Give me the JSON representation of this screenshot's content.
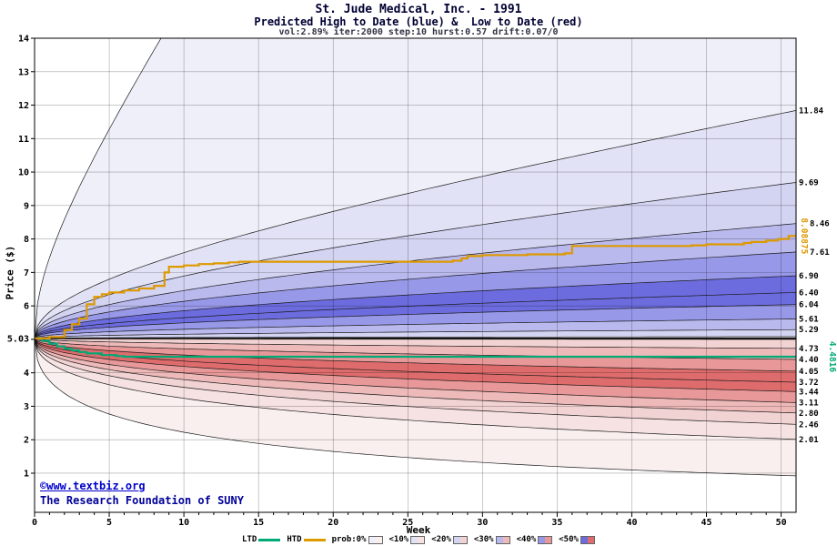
{
  "header": {
    "title": "St. Jude Medical, Inc. - 1991",
    "subtitle": "Predicted High to Date (blue) &  Low to Date (red)",
    "params": "vol:2.89% iter:2000 step:10 hurst:0.57 drift:0.07/0"
  },
  "footer": {
    "copyright": "©www.textbiz.org",
    "institution": "The Research Foundation of SUNY"
  },
  "chart_data": {
    "type": "area",
    "title": "St. Jude Medical, Inc. - 1991",
    "subtitle": "Predicted High to Date (blue) &  Low to Date (red)",
    "xlabel": "Week",
    "ylabel": "Price ($)",
    "x_min": 0,
    "x_max": 51,
    "x_ticks": [
      0,
      5,
      10,
      15,
      20,
      25,
      30,
      35,
      40,
      45,
      50
    ],
    "y_min": -0.17,
    "y_max": 14,
    "y_ticks": [
      1,
      2,
      3,
      4,
      5,
      6,
      7,
      8,
      9,
      10,
      11,
      12,
      13,
      14
    ],
    "grid": true,
    "legend_position": "bottom",
    "start_price": 5.03,
    "start_price_label": "5.03",
    "shape_exponent": 0.45,
    "band_levels": [
      0,
      1,
      2,
      3,
      4,
      5,
      5,
      4,
      3,
      2
    ],
    "blue_palette": [
      "#efeff9",
      "#e2e2f6",
      "#d3d3f2",
      "#b9b9ee",
      "#9898e8",
      "#6c6cdf"
    ],
    "red_palette": [
      "#f9efef",
      "#f6e2e2",
      "#f2d3d3",
      "#eeb9b9",
      "#e89898",
      "#df6c6c"
    ],
    "high_fan": {
      "name": "Predicted High to Date deciles",
      "curve_ends": [
        50,
        11.84,
        9.69,
        8.46,
        7.61,
        6.9,
        6.4,
        6.04,
        5.61,
        5.29,
        5.08
      ],
      "end_labels": [
        {
          "text": "11.84",
          "value": 11.84,
          "dx": 0
        },
        {
          "text": "9.69",
          "value": 9.69,
          "dx": 0
        },
        {
          "text": "8.46",
          "value": 8.46,
          "dx": 12
        },
        {
          "text": "7.61",
          "value": 7.61,
          "dx": 12
        },
        {
          "text": "6.90",
          "value": 6.9,
          "dx": 0
        },
        {
          "text": "6.40",
          "value": 6.4,
          "dx": 0
        },
        {
          "text": "6.04",
          "value": 6.04,
          "dx": 0
        },
        {
          "text": "5.61",
          "value": 5.61,
          "dx": 0
        },
        {
          "text": "5.29",
          "value": 5.29,
          "dx": 0
        }
      ]
    },
    "low_fan": {
      "name": "Predicted Low to Date deciles",
      "curve_ends": [
        0.92,
        2.01,
        2.46,
        2.8,
        3.11,
        3.44,
        3.72,
        4.05,
        4.4,
        4.73,
        5.0
      ],
      "end_labels": [
        {
          "text": "4.73",
          "value": 4.73,
          "dx": 0
        },
        {
          "text": "4.40",
          "value": 4.4,
          "dx": 0
        },
        {
          "text": "4.05",
          "value": 4.05,
          "dx": 0
        },
        {
          "text": "3.72",
          "value": 3.72,
          "dx": 0
        },
        {
          "text": "3.44",
          "value": 3.44,
          "dx": 0
        },
        {
          "text": "3.11",
          "value": 3.11,
          "dx": 0
        },
        {
          "text": "2.80",
          "value": 2.8,
          "dx": 0
        },
        {
          "text": "2.46",
          "value": 2.46,
          "dx": 0
        },
        {
          "text": "2.01",
          "value": 2.01,
          "dx": 0
        }
      ]
    },
    "htd": {
      "name": "HTD",
      "color": "#dd9900",
      "final_value": 8.08875,
      "end_label": "8.08875",
      "steps": [
        [
          0,
          5.03
        ],
        [
          1,
          5.07
        ],
        [
          2,
          5.28
        ],
        [
          2.5,
          5.45
        ],
        [
          3,
          5.62
        ],
        [
          3.5,
          6.05
        ],
        [
          4,
          6.27
        ],
        [
          4.5,
          6.35
        ],
        [
          5,
          6.4
        ],
        [
          6,
          6.46
        ],
        [
          7,
          6.52
        ],
        [
          8,
          6.6
        ],
        [
          8.7,
          7.0
        ],
        [
          9,
          7.17
        ],
        [
          10,
          7.21
        ],
        [
          11,
          7.25
        ],
        [
          12,
          7.27
        ],
        [
          13,
          7.3
        ],
        [
          13.7,
          7.32
        ],
        [
          28,
          7.35
        ],
        [
          28.6,
          7.42
        ],
        [
          29,
          7.49
        ],
        [
          30,
          7.52
        ],
        [
          33,
          7.54
        ],
        [
          35.5,
          7.57
        ],
        [
          36,
          7.79
        ],
        [
          44,
          7.81
        ],
        [
          45,
          7.84
        ],
        [
          47.5,
          7.88
        ],
        [
          48,
          7.91
        ],
        [
          49,
          7.95
        ],
        [
          49.8,
          8.0
        ],
        [
          50.5,
          8.08875
        ]
      ]
    },
    "ltd": {
      "name": "LTD",
      "color": "#00aa77",
      "final_value": 4.4816,
      "end_label": "4.4816",
      "steps": [
        [
          0,
          5.03
        ],
        [
          0.5,
          4.95
        ],
        [
          1,
          4.87
        ],
        [
          1.5,
          4.79
        ],
        [
          2,
          4.72
        ],
        [
          2.5,
          4.67
        ],
        [
          3,
          4.62
        ],
        [
          3.5,
          4.58
        ],
        [
          4.5,
          4.53
        ],
        [
          5.5,
          4.5
        ],
        [
          6,
          4.4816
        ]
      ]
    },
    "legend": {
      "ltd_label": "LTD",
      "htd_label": "HTD",
      "prob_labels": [
        "prob:0%",
        "<10%",
        "<20%",
        "<30%",
        "<40%",
        "<50%"
      ]
    }
  }
}
